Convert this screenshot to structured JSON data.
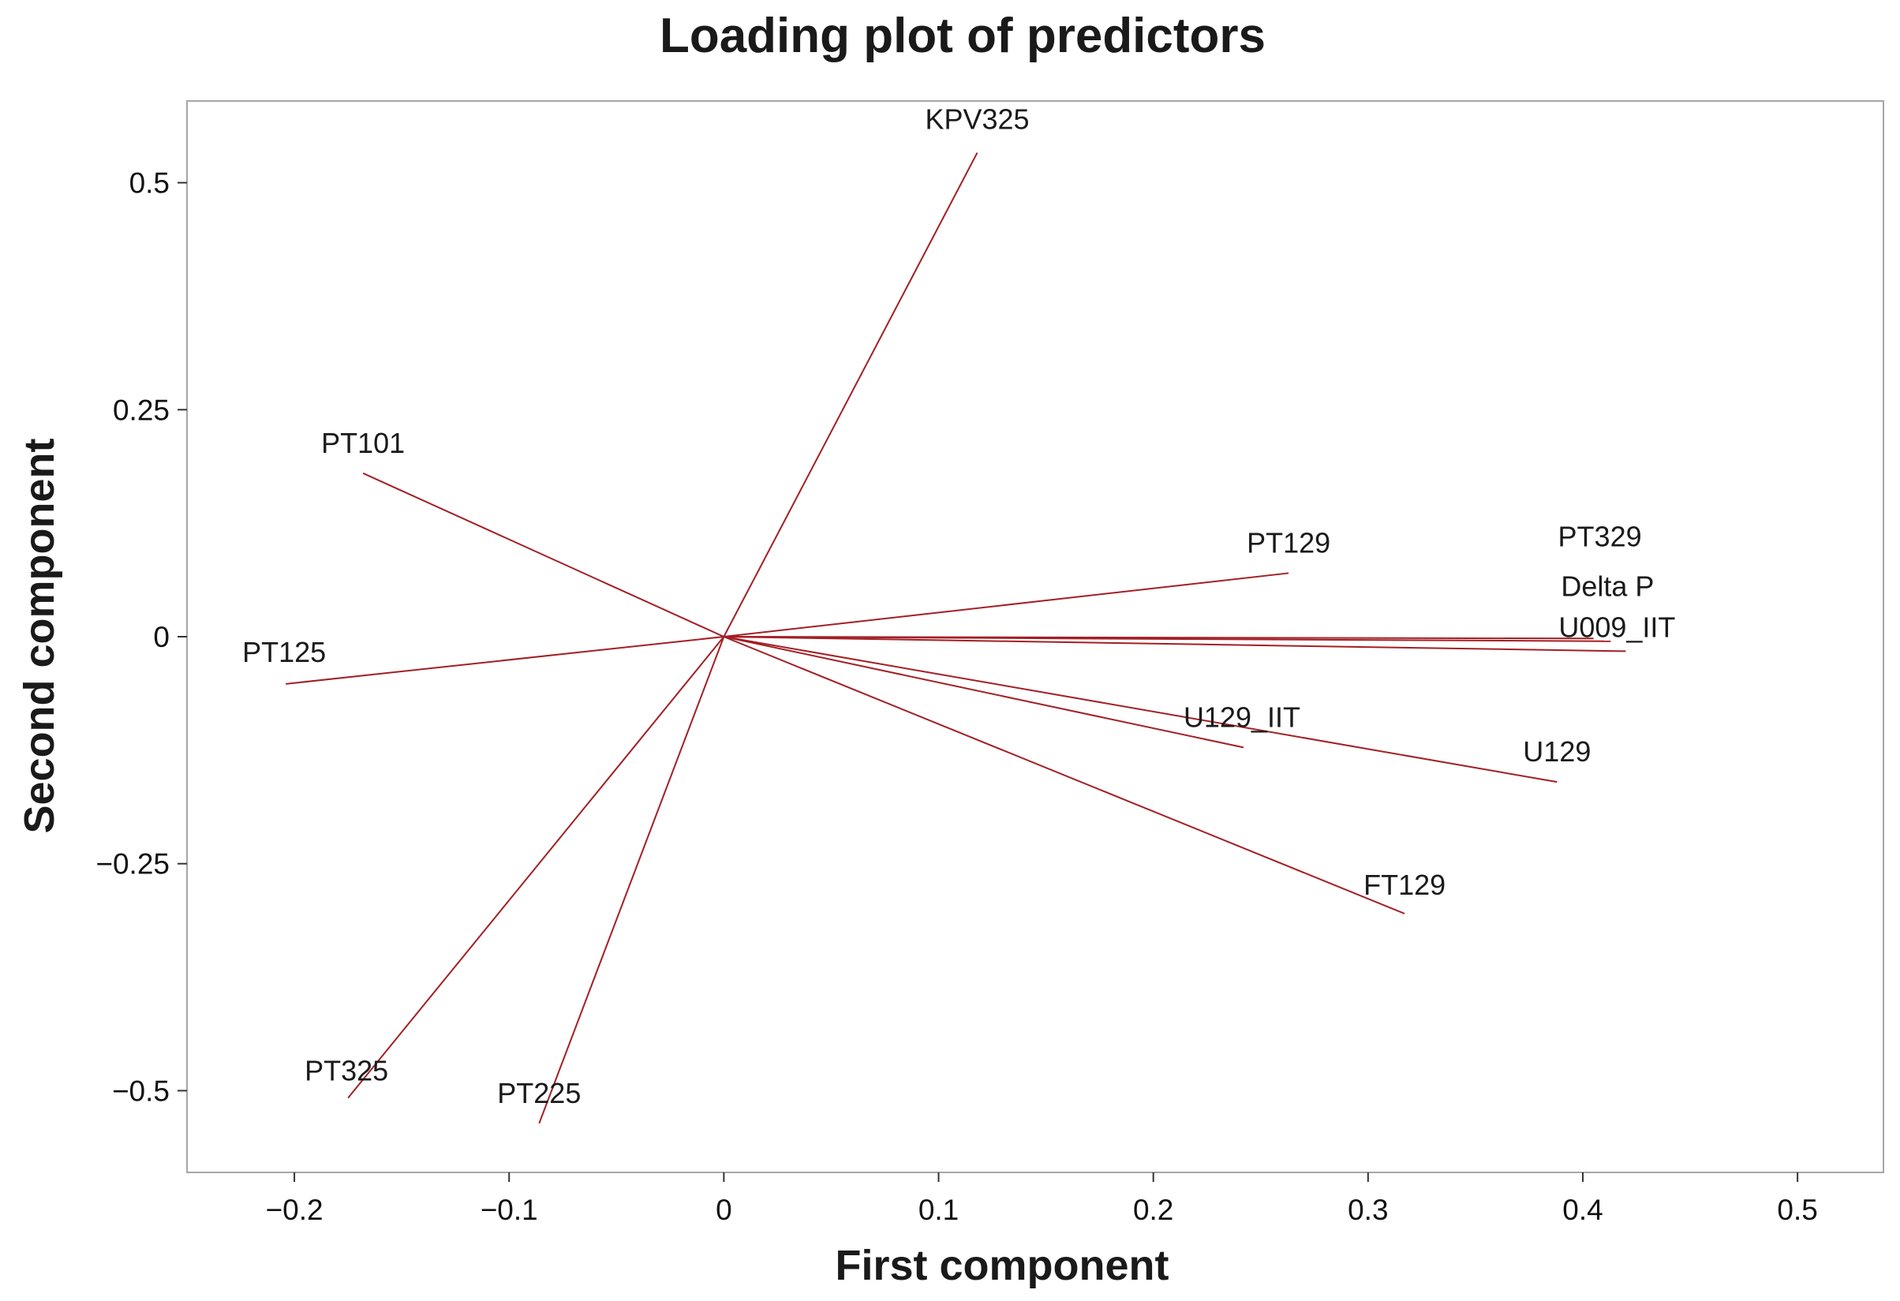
{
  "chart_data": {
    "type": "loading-plot",
    "title": "Loading plot of predictors",
    "xlabel": "First component",
    "ylabel": "Second component",
    "xlim": [
      -0.25,
      0.54
    ],
    "ylim": [
      -0.59,
      0.59
    ],
    "xticks": [
      {
        "value": -0.2,
        "label": "−0.2"
      },
      {
        "value": -0.1,
        "label": "−0.1"
      },
      {
        "value": 0,
        "label": "0"
      },
      {
        "value": 0.1,
        "label": "0.1"
      },
      {
        "value": 0.2,
        "label": "0.2"
      },
      {
        "value": 0.3,
        "label": "0.3"
      },
      {
        "value": 0.4,
        "label": "0.4"
      },
      {
        "value": 0.5,
        "label": "0.5"
      }
    ],
    "yticks": [
      {
        "value": 0.5,
        "label": "0.5"
      },
      {
        "value": 0.25,
        "label": "0.25"
      },
      {
        "value": 0,
        "label": "0"
      },
      {
        "value": -0.25,
        "label": "−0.25"
      },
      {
        "value": -0.5,
        "label": "−0.5"
      }
    ],
    "grid": false,
    "line_color": "#a31f24",
    "loadings": [
      {
        "name": "KPV325",
        "x": 0.118,
        "y": 0.533
      },
      {
        "name": "PT101",
        "x": -0.168,
        "y": 0.18
      },
      {
        "name": "PT129",
        "x": 0.263,
        "y": 0.07
      },
      {
        "name": "PT329",
        "x": 0.405,
        "y": -0.002
      },
      {
        "name": "Delta P",
        "x": 0.413,
        "y": -0.005
      },
      {
        "name": "U009_IIT",
        "x": 0.42,
        "y": -0.016
      },
      {
        "name": "PT125",
        "x": -0.204,
        "y": -0.052
      },
      {
        "name": "U129_IIT",
        "x": 0.242,
        "y": -0.122
      },
      {
        "name": "U129",
        "x": 0.388,
        "y": -0.16
      },
      {
        "name": "FT129",
        "x": 0.317,
        "y": -0.305
      },
      {
        "name": "PT325",
        "x": -0.175,
        "y": -0.508
      },
      {
        "name": "PT225",
        "x": -0.086,
        "y": -0.536
      }
    ]
  }
}
